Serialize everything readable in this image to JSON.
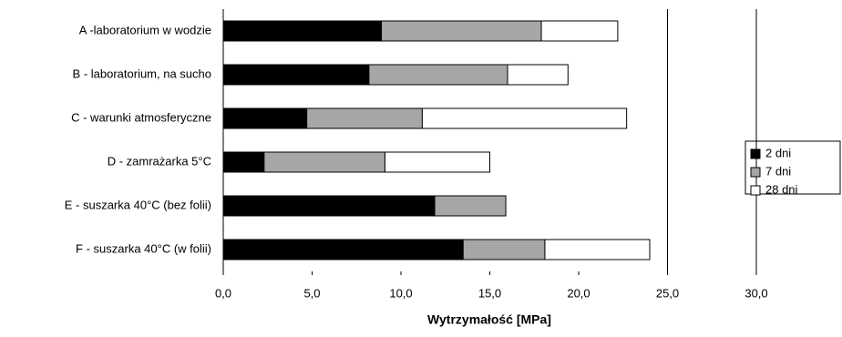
{
  "chart_data": {
    "type": "bar",
    "orientation": "horizontal",
    "stacked": true,
    "x_label": "Wytrzymałość [MPa]",
    "categories": [
      "A -laboratorium w wodzie",
      "B - laboratorium, na sucho",
      "C - warunki atmosferyczne",
      "D - zamrażarka 5°C",
      "E - suszarka 40°C (bez folii)",
      "F - suszarka 40°C (w folii)"
    ],
    "series": [
      {
        "name": "2 dni",
        "color": "#000000",
        "values": [
          8.9,
          8.2,
          4.7,
          2.3,
          11.9,
          13.5
        ]
      },
      {
        "name": "7 dni",
        "color": "#a6a6a6",
        "values": [
          9.0,
          7.8,
          6.5,
          6.8,
          4.0,
          4.6
        ]
      },
      {
        "name": "28 dni",
        "color": "#ffffff",
        "values": [
          4.3,
          3.4,
          11.5,
          5.9,
          null,
          5.9
        ]
      }
    ],
    "xlim": [
      0,
      30
    ],
    "xticks": [
      {
        "value": 0,
        "label": "0,0"
      },
      {
        "value": 5,
        "label": "5,0"
      },
      {
        "value": 10,
        "label": "10,0"
      },
      {
        "value": 15,
        "label": "15,0"
      },
      {
        "value": 20,
        "label": "20,0"
      },
      {
        "value": 25,
        "label": "25,0"
      },
      {
        "value": 30,
        "label": "30,0"
      }
    ],
    "gridlines": [
      25,
      30
    ],
    "legend": "right"
  }
}
